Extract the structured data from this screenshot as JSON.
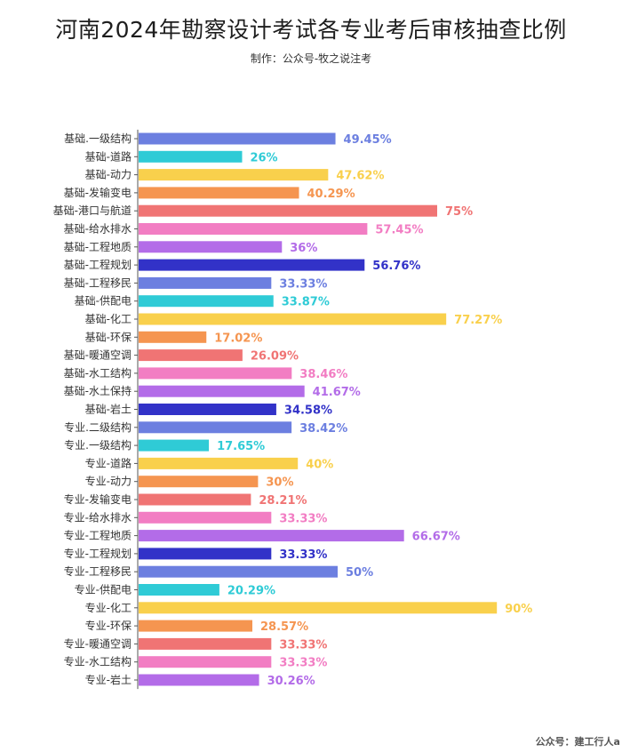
{
  "title": "河南2024年勘察设计考试各专业考后审核抽查比例",
  "subtitle": "制作：公众号-牧之说注考",
  "footer": "公众号：建工行人a",
  "colors": [
    "#6C7FE0",
    "#2FCBD6",
    "#F9D04C",
    "#F59550",
    "#F07474",
    "#F27DC3",
    "#B36CE8",
    "#3232C8"
  ],
  "chart_data": {
    "type": "bar",
    "orientation": "horizontal",
    "xlim": [
      0,
      100
    ],
    "categories": [
      "基础.一级结构",
      "基础-道路",
      "基础-动力",
      "基础-发输变电",
      "基础-港口与航道",
      "基础-给水排水",
      "基础-工程地质",
      "基础-工程规划",
      "基础-工程移民",
      "基础-供配电",
      "基础-化工",
      "基础-环保",
      "基础-暖通空调",
      "基础-水工结构",
      "基础-水土保持",
      "基础-岩土",
      "专业.二级结构",
      "专业.一级结构",
      "专业-道路",
      "专业-动力",
      "专业-发输变电",
      "专业-给水排水",
      "专业-工程地质",
      "专业-工程规划",
      "专业-工程移民",
      "专业-供配电",
      "专业-化工",
      "专业-环保",
      "专业-暖通空调",
      "专业-水工结构",
      "专业-岩土"
    ],
    "values": [
      49.45,
      26,
      47.62,
      40.29,
      75,
      57.45,
      36,
      56.76,
      33.33,
      33.87,
      77.27,
      17.02,
      26.09,
      38.46,
      41.67,
      34.58,
      38.42,
      17.65,
      40,
      30,
      28.21,
      33.33,
      66.67,
      33.33,
      50,
      20.29,
      90,
      28.57,
      33.33,
      33.33,
      30.26
    ],
    "value_labels": [
      "49.45%",
      "26%",
      "47.62%",
      "40.29%",
      "75%",
      "57.45%",
      "36%",
      "56.76%",
      "33.33%",
      "33.87%",
      "77.27%",
      "17.02%",
      "26.09%",
      "38.46%",
      "41.67%",
      "34.58%",
      "38.42%",
      "17.65%",
      "40%",
      "30%",
      "28.21%",
      "33.33%",
      "66.67%",
      "33.33%",
      "50%",
      "20.29%",
      "90%",
      "28.57%",
      "33.33%",
      "33.33%",
      "30.26%"
    ],
    "grid": false,
    "legend": false
  }
}
